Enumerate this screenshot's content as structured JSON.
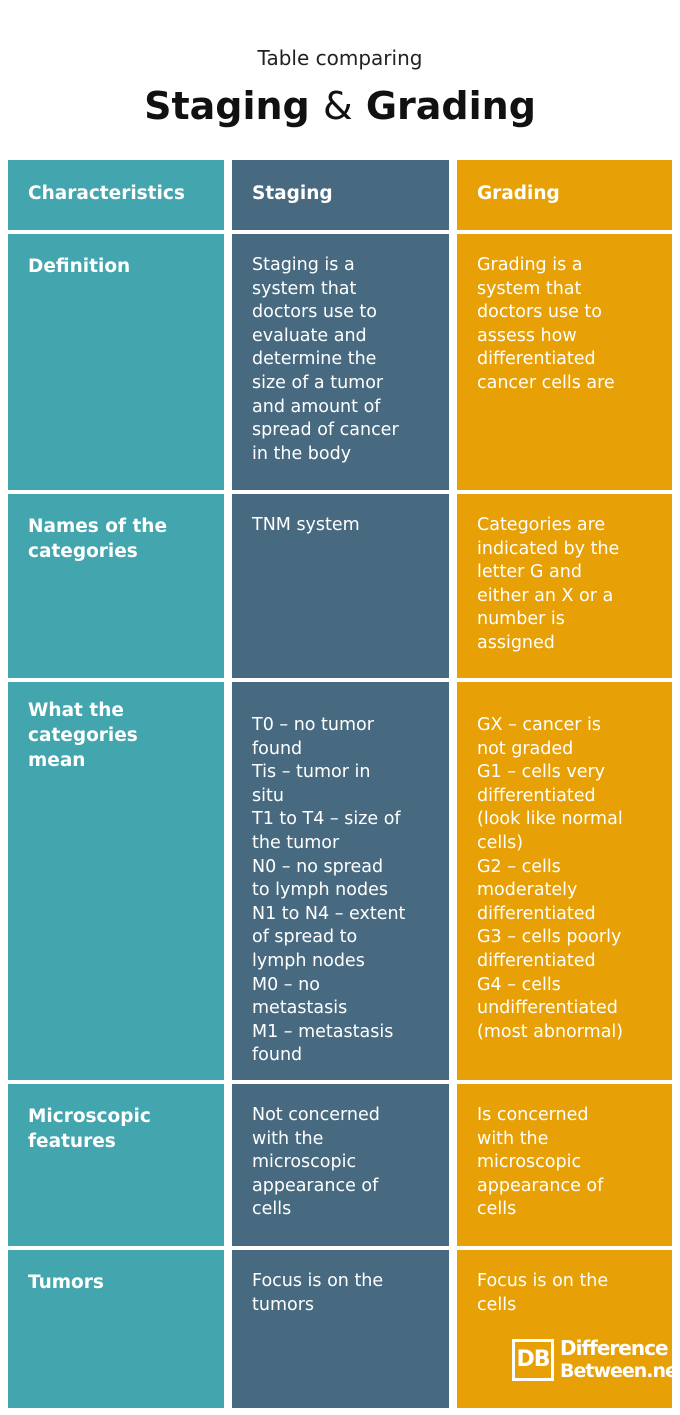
{
  "header": {
    "subtitle": "Table comparing",
    "title_part1": "Staging",
    "title_amp": "&",
    "title_part2": "Grading"
  },
  "table": {
    "columns": [
      "Characteristics",
      "Staging",
      "Grading"
    ],
    "rows": [
      {
        "label": [
          "Definition"
        ],
        "staging": [
          "Staging is a",
          "system that",
          "doctors use to",
          "evaluate and",
          "determine the",
          "size of a tumor",
          "and amount of",
          "spread of cancer",
          "in the body"
        ],
        "grading": [
          "Grading is a",
          "system that",
          "doctors use to",
          "assess how",
          "differentiated",
          "cancer cells are"
        ]
      },
      {
        "label": [
          "Names of the",
          "categories"
        ],
        "staging": [
          "TNM system"
        ],
        "grading": [
          "Categories are",
          "indicated by the",
          "letter G and",
          "either an X or a",
          "number is",
          "assigned"
        ]
      },
      {
        "label": [
          "What the",
          "categories",
          "mean"
        ],
        "staging": [
          "T0 – no tumor",
          "found",
          "Tis – tumor in",
          "situ",
          "T1 to T4 – size of",
          "the tumor",
          "N0 – no spread",
          "to lymph nodes",
          "N1 to N4 – extent",
          "of spread to",
          "lymph nodes",
          "M0 – no",
          "metastasis",
          "M1 – metastasis",
          "found"
        ],
        "grading": [
          "GX – cancer is",
          "not graded",
          "G1 – cells very",
          "differentiated",
          "(look like normal",
          "cells)",
          "G2 – cells",
          "moderately",
          "differentiated",
          "G3 – cells poorly",
          "differentiated",
          "G4 – cells",
          "undifferentiated",
          "(most abnormal)"
        ]
      },
      {
        "label": [
          "Microscopic",
          "features"
        ],
        "staging": [
          "Not concerned",
          "with the",
          "microscopic",
          "appearance of",
          "cells"
        ],
        "grading": [
          "Is concerned",
          "with the",
          "microscopic",
          "appearance of",
          "cells"
        ]
      },
      {
        "label": [
          "Tumors"
        ],
        "staging": [
          "Focus is on the",
          "tumors"
        ],
        "grading": [
          "Focus is on the",
          "cells"
        ]
      }
    ]
  },
  "logo": {
    "mark": "DB",
    "line1": "Difference",
    "line2": "Between.net"
  },
  "colors": {
    "characteristics_teal": "#43a5ad",
    "staging_slate": "#486a80",
    "grading_amber": "#e7a005"
  }
}
